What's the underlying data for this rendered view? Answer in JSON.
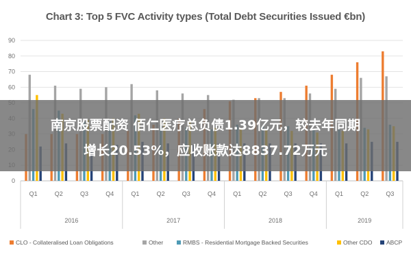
{
  "chart_data": {
    "type": "bar",
    "title": "Chart 3: Top 5 FVC Activity types (Total Debt Securities Issued €bn)",
    "categories": [
      "Q1",
      "Q2",
      "Q3",
      "Q4",
      "Q1",
      "Q2",
      "Q3",
      "Q4",
      "Q1",
      "Q2",
      "Q3",
      "Q4",
      "Q1",
      "Q2",
      "Q3"
    ],
    "years": [
      {
        "label": "2016",
        "span": [
          0,
          3
        ]
      },
      {
        "label": "2017",
        "span": [
          4,
          7
        ]
      },
      {
        "label": "2018",
        "span": [
          8,
          11
        ]
      },
      {
        "label": "2019",
        "span": [
          12,
          14
        ]
      }
    ],
    "ylim": [
      0,
      90
    ],
    "yticks": [
      0,
      10,
      20,
      30,
      40,
      50,
      60,
      70,
      80,
      90
    ],
    "grid": true,
    "legend_position": "bottom",
    "series": [
      {
        "name": "CLO - Collateralised Loan Obligations",
        "color": "#ed7d31",
        "values": [
          30,
          30,
          30,
          30,
          32,
          36,
          40,
          46,
          51,
          53,
          57,
          61,
          68,
          76,
          83
        ]
      },
      {
        "name": "Other",
        "color": "#a5a5a5",
        "values": [
          68,
          61,
          59,
          60,
          62,
          58,
          56,
          55,
          52,
          53,
          53,
          56,
          59,
          66,
          67
        ]
      },
      {
        "name": "RMBS - Residential Mortgage Backed Securities",
        "color": "#4e9ab5",
        "values": [
          46,
          45,
          38,
          38,
          42,
          36,
          34,
          33,
          36,
          35,
          35,
          33,
          33,
          34,
          36
        ]
      },
      {
        "name": "Other CDO",
        "color": "#ffc000",
        "values": [
          55,
          43,
          39,
          40,
          43,
          40,
          38,
          34,
          34,
          33,
          32,
          31,
          32,
          33,
          35
        ]
      },
      {
        "name": "ABCP",
        "color": "#264478",
        "values": [
          22,
          24,
          22,
          23,
          25,
          24,
          23,
          24,
          24,
          24,
          24,
          24,
          24,
          25,
          25
        ]
      }
    ]
  },
  "overlay": {
    "line1": "南京股票配资 佰仁医疗总负债1.39亿元，较去年同期",
    "line2": "增长20.53%，应收账款达8837.72万元"
  }
}
